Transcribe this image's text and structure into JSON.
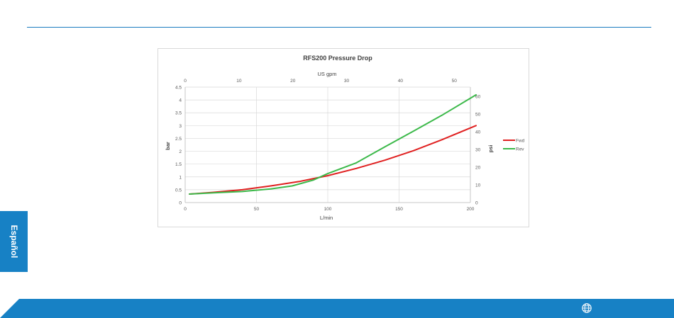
{
  "page": {
    "language_tab": "Español",
    "globe_icon": "globe-icon",
    "accent_color": "#1781c5"
  },
  "chart_data": {
    "type": "line",
    "title": "RFS200 Pressure Drop",
    "xlabel": "L/min",
    "x2label": "US gpm",
    "ylabel": "bar",
    "y2label": "psi",
    "xlim": [
      0,
      200
    ],
    "x2lim": [
      0,
      53
    ],
    "ylim": [
      0,
      4.5
    ],
    "y2lim": [
      0,
      65.3
    ],
    "x_ticks": [
      0,
      50,
      100,
      150,
      200
    ],
    "x2_ticks": [
      0,
      10,
      20,
      30,
      40,
      50
    ],
    "y_ticks": [
      "0",
      "0.5",
      "1",
      "1.5",
      "2",
      "2.5",
      "3",
      "3.5",
      "4",
      "4.5"
    ],
    "y2_ticks": [
      0,
      10,
      20,
      30,
      40,
      50,
      60
    ],
    "grid": true,
    "legend_position": "right",
    "series": [
      {
        "name": "Fwd",
        "color": "#e02020",
        "x": [
          3,
          20,
          40,
          60,
          80,
          100,
          120,
          140,
          160,
          180,
          204
        ],
        "y": [
          0.33,
          0.4,
          0.5,
          0.65,
          0.82,
          1.05,
          1.33,
          1.65,
          2.02,
          2.45,
          3.0
        ]
      },
      {
        "name": "Rev",
        "color": "#3cb94a",
        "x": [
          3,
          20,
          40,
          60,
          75,
          90,
          100,
          120,
          140,
          160,
          180,
          204
        ],
        "y": [
          0.33,
          0.38,
          0.43,
          0.53,
          0.65,
          0.88,
          1.13,
          1.55,
          2.17,
          2.78,
          3.4,
          4.2
        ]
      }
    ]
  }
}
